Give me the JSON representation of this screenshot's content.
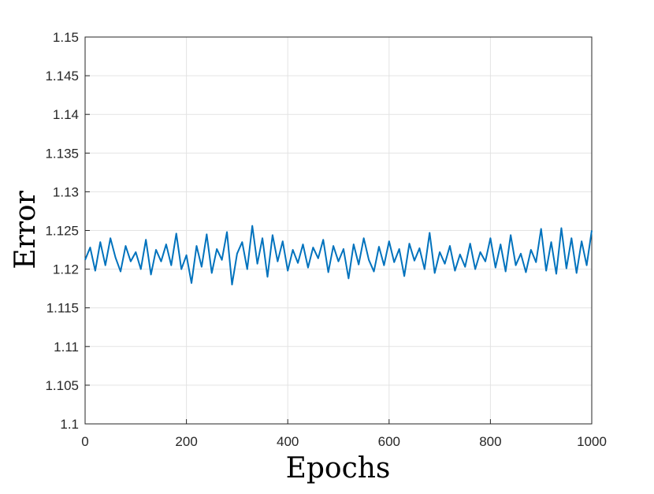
{
  "chart_data": {
    "type": "line",
    "xlabel": "Epochs",
    "ylabel": "Error",
    "x": [
      0,
      10,
      20,
      30,
      40,
      50,
      60,
      70,
      80,
      90,
      100,
      110,
      120,
      130,
      140,
      150,
      160,
      170,
      180,
      190,
      200,
      210,
      220,
      230,
      240,
      250,
      260,
      270,
      280,
      290,
      300,
      310,
      320,
      330,
      340,
      350,
      360,
      370,
      380,
      390,
      400,
      410,
      420,
      430,
      440,
      450,
      460,
      470,
      480,
      490,
      500,
      510,
      520,
      530,
      540,
      550,
      560,
      570,
      580,
      590,
      600,
      610,
      620,
      630,
      640,
      650,
      660,
      670,
      680,
      690,
      700,
      710,
      720,
      730,
      740,
      750,
      760,
      770,
      780,
      790,
      800,
      810,
      820,
      830,
      840,
      850,
      860,
      870,
      880,
      890,
      900,
      910,
      920,
      930,
      940,
      950,
      960,
      970,
      980,
      990,
      1000
    ],
    "series": [
      {
        "color": "#0072bd",
        "values": [
          1.1212,
          1.1228,
          1.1198,
          1.1235,
          1.1205,
          1.124,
          1.1215,
          1.1197,
          1.123,
          1.121,
          1.1222,
          1.12,
          1.1238,
          1.1193,
          1.1225,
          1.121,
          1.1232,
          1.1205,
          1.1246,
          1.12,
          1.1218,
          1.1182,
          1.123,
          1.1203,
          1.1245,
          1.1195,
          1.1226,
          1.1212,
          1.1248,
          1.118,
          1.122,
          1.1235,
          1.12,
          1.1256,
          1.1207,
          1.124,
          1.119,
          1.1244,
          1.121,
          1.1236,
          1.1198,
          1.1225,
          1.1208,
          1.1232,
          1.1202,
          1.1228,
          1.1214,
          1.1238,
          1.1196,
          1.123,
          1.121,
          1.1226,
          1.1188,
          1.1232,
          1.1206,
          1.124,
          1.1212,
          1.1197,
          1.1229,
          1.1205,
          1.1236,
          1.1209,
          1.1226,
          1.1191,
          1.1233,
          1.1211,
          1.1227,
          1.12,
          1.1247,
          1.1195,
          1.1222,
          1.1207,
          1.123,
          1.1198,
          1.1219,
          1.1203,
          1.1233,
          1.12,
          1.1222,
          1.121,
          1.124,
          1.1202,
          1.1232,
          1.1197,
          1.1244,
          1.1205,
          1.122,
          1.1196,
          1.1225,
          1.1209,
          1.1252,
          1.1198,
          1.1235,
          1.1194,
          1.1253,
          1.1201,
          1.124,
          1.1195,
          1.1236,
          1.1205,
          1.125
        ]
      }
    ],
    "xlim": [
      0,
      1000
    ],
    "xticks": [
      0,
      200,
      400,
      600,
      800,
      1000
    ],
    "ylim": [
      1.1,
      1.15
    ],
    "yticks": [
      1.1,
      1.105,
      1.11,
      1.115,
      1.12,
      1.125,
      1.13,
      1.135,
      1.14,
      1.145,
      1.15
    ],
    "grid": true
  }
}
